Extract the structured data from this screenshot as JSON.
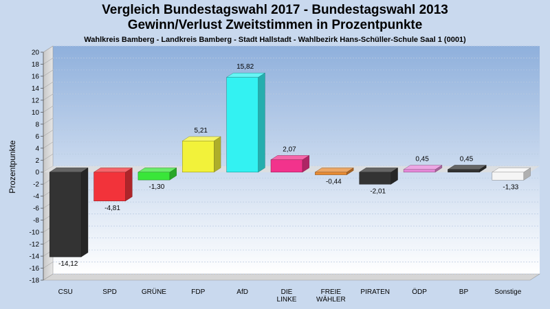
{
  "chart_data": {
    "type": "bar",
    "title_line1": "Vergleich Bundestagswahl 2017 - Bundestagswahl 2013",
    "title_line2": "Gewinn/Verlust Zweitstimmen in Prozentpunkte",
    "subtitle": "Wahlkreis Bamberg - Landkreis Bamberg - Stadt Hallstadt - Wahlbezirk Hans-Schüller-Schule Saal 1 (0001)",
    "ylabel": "Prozentpunkte",
    "ylim": [
      -18,
      20
    ],
    "ytick_step": 2,
    "grid": true,
    "categories": [
      {
        "label": [
          "CSU"
        ],
        "value": -14.12,
        "value_label": "-14,12",
        "color": "#333333"
      },
      {
        "label": [
          "SPD"
        ],
        "value": -4.81,
        "value_label": "-4,81",
        "color": "#f2333a"
      },
      {
        "label": [
          "GRÜNE"
        ],
        "value": -1.3,
        "value_label": "-1,30",
        "color": "#39e639"
      },
      {
        "label": [
          "FDP"
        ],
        "value": 5.21,
        "value_label": "5,21",
        "color": "#f2f23a"
      },
      {
        "label": [
          "AfD"
        ],
        "value": 15.82,
        "value_label": "15,82",
        "color": "#33f2f2"
      },
      {
        "label": [
          "DIE",
          "LINKE"
        ],
        "value": 2.07,
        "value_label": "2,07",
        "color": "#f2338c"
      },
      {
        "label": [
          "FREIE",
          "WÄHLER"
        ],
        "value": -0.44,
        "value_label": "-0,44",
        "color": "#e68a33"
      },
      {
        "label": [
          "PIRATEN"
        ],
        "value": -2.01,
        "value_label": "-2,01",
        "color": "#333333"
      },
      {
        "label": [
          "ÖDP"
        ],
        "value": 0.45,
        "value_label": "0,45",
        "color": "#e68ad9"
      },
      {
        "label": [
          "BP"
        ],
        "value": 0.45,
        "value_label": "0,45",
        "color": "#333333"
      },
      {
        "label": [
          "Sonstige"
        ],
        "value": -1.33,
        "value_label": "-1,33",
        "color": "#f5f5f5"
      }
    ]
  }
}
